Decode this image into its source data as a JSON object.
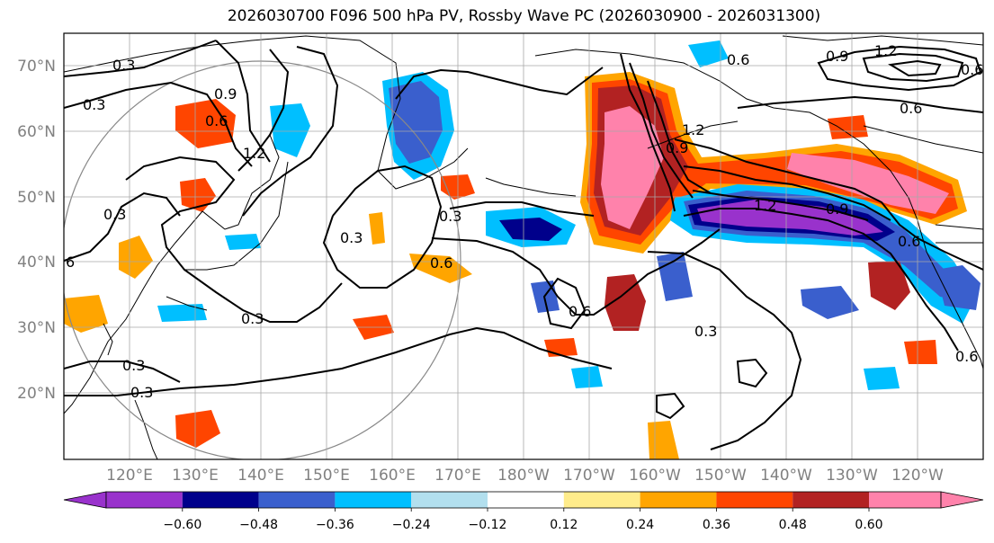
{
  "title": "2026030700 F096 500 hPa PV, Rossby Wave PC (2026030900 - 2026031300)",
  "map": {
    "lat_labels": [
      "70°N",
      "60°N",
      "50°N",
      "40°N",
      "30°N",
      "20°N"
    ],
    "lon_labels": [
      "120°E",
      "130°E",
      "140°E",
      "150°E",
      "160°E",
      "170°E",
      "180°W",
      "170°W",
      "160°W",
      "150°W",
      "140°W",
      "130°W",
      "120°W"
    ],
    "contour_labels": [
      "0.3",
      "0.3",
      "0.9",
      "0.6",
      "1.2",
      "0.3",
      "0.3",
      "0.3",
      "0.3",
      "0.6",
      "0.3",
      "0.6",
      "0.3",
      "0.6",
      "0.3",
      "0.6",
      "0.9",
      "1.2",
      "0.9",
      "1.2",
      "0.6",
      "1.2",
      "0.9",
      "0.6",
      "6",
      "0.6"
    ]
  },
  "colorbar": {
    "tick_labels": [
      "−0.60",
      "−0.48",
      "−0.36",
      "−0.24",
      "−0.12",
      "0.12",
      "0.24",
      "0.36",
      "0.48",
      "0.60"
    ],
    "colors": [
      "#9932cc",
      "#00008b",
      "#3a5fcd",
      "#00bfff",
      "#b2dfee",
      "#ffffff",
      "#ffec8b",
      "#ffa500",
      "#ff4500",
      "#b22222",
      "#ff82ab"
    ]
  }
}
